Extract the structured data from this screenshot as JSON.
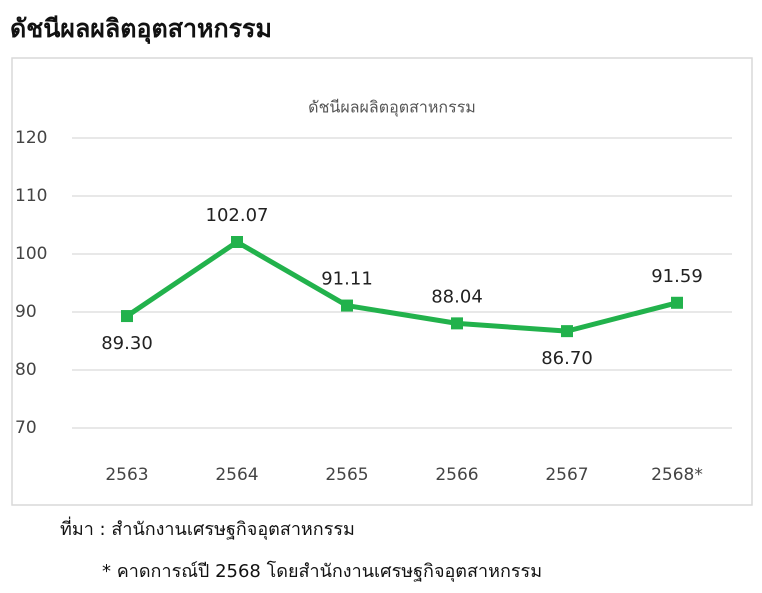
{
  "header": {
    "title": "ดัชนีผลผลิตอุตสาหกรรม"
  },
  "chart_data": {
    "type": "line",
    "title": "ดัชนีผลผลิตอุตสาหกรรม",
    "categories": [
      "2563",
      "2564",
      "2565",
      "2566",
      "2567",
      "2568*"
    ],
    "series": [
      {
        "name": "ดัชนีผลผลิตอุตสาหกรรม",
        "color": "#22b24c",
        "values": [
          89.3,
          102.07,
          91.11,
          88.04,
          86.7,
          91.59
        ],
        "value_labels": [
          "89.30",
          "102.07",
          "91.11",
          "88.04",
          "86.70",
          "91.59"
        ]
      }
    ],
    "ylim": [
      70,
      120
    ],
    "yticks": [
      70,
      80,
      90,
      100,
      110,
      120
    ],
    "grid": true,
    "legend": false
  },
  "footnotes": {
    "source": "ที่มา : สำนักงานเศรษฐกิจอุตสาหกรรม",
    "note": "* คาดการณ์ปี 2568 โดยสำนักงานเศรษฐกิจอุตสาหกรรม"
  }
}
